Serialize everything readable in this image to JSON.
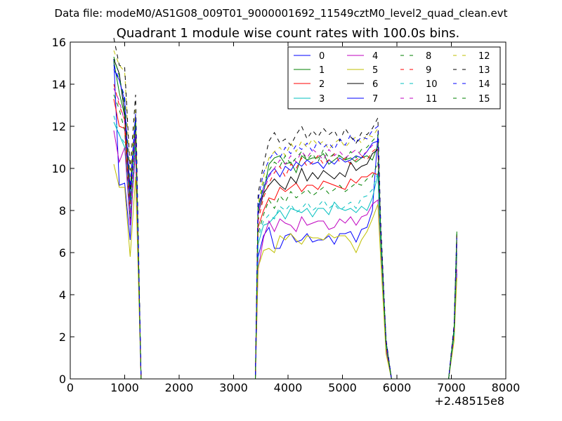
{
  "page": {
    "suptitle": "Data file: modeM0/AS1G08_009T01_9000001692_11549cztM0_level2_quad_clean.evt"
  },
  "chart_data": {
    "type": "line",
    "title": "Quadrant 1 module wise count rates with 100.0s bins.",
    "xlabel": "",
    "ylabel": "",
    "x_offset_label": "+2.48515e8",
    "xlim": [
      0,
      8000
    ],
    "ylim": [
      0,
      16
    ],
    "x_ticks": [
      "0",
      "1000",
      "2000",
      "3000",
      "4000",
      "5000",
      "6000",
      "7000",
      "8000"
    ],
    "y_ticks": [
      "0",
      "2",
      "4",
      "6",
      "8",
      "10",
      "12",
      "14",
      "16"
    ],
    "grid": false,
    "legend_position": "top-right",
    "x": [
      800,
      900,
      1000,
      1100,
      1200,
      1300,
      1400,
      2000,
      3000,
      3400,
      3450,
      3550,
      3650,
      3750,
      3850,
      3950,
      4050,
      4150,
      4250,
      4350,
      4450,
      4550,
      4650,
      4750,
      4850,
      4950,
      5050,
      5150,
      5250,
      5350,
      5450,
      5550,
      5650,
      5700,
      5800,
      5900,
      6000,
      6500,
      6950,
      7050,
      7100
    ],
    "series": [
      {
        "name": "0",
        "color": "#0000ff",
        "dash": "solid",
        "values": [
          15.2,
          9.2,
          9.3,
          6.6,
          11.9,
          0,
          0,
          0,
          0,
          0,
          5.8,
          6.8,
          7.2,
          6.2,
          6.2,
          6.8,
          6.9,
          6.5,
          6.6,
          6.9,
          6.5,
          6.6,
          6.6,
          6.8,
          6.4,
          6.9,
          6.9,
          7.0,
          6.5,
          7.1,
          7.2,
          8.0,
          11.6,
          6.6,
          1.4,
          0,
          0,
          0,
          0,
          2.0,
          5.0
        ]
      },
      {
        "name": "1",
        "color": "#008000",
        "dash": "solid",
        "values": [
          15.1,
          13.6,
          12.5,
          8.3,
          12.5,
          0,
          0,
          0,
          0,
          0,
          8.2,
          8.8,
          10.2,
          10.5,
          10.6,
          10.2,
          10.3,
          9.8,
          10.6,
          10.4,
          10.5,
          10.5,
          10.7,
          10.2,
          10.4,
          10.6,
          10.4,
          10.5,
          10.3,
          10.5,
          10.6,
          10.4,
          11.1,
          7.1,
          1.8,
          0,
          0,
          0,
          0,
          2.4,
          7.0
        ]
      },
      {
        "name": "2",
        "color": "#ff0000",
        "dash": "solid",
        "values": [
          13.3,
          12.0,
          11.9,
          7.3,
          10.9,
          0,
          0,
          0,
          0,
          0,
          7.2,
          8.0,
          8.6,
          8.5,
          9.1,
          8.9,
          9.1,
          9.3,
          8.9,
          9.2,
          9.2,
          9.0,
          9.4,
          9.3,
          9.2,
          9.1,
          9.0,
          9.5,
          9.3,
          9.6,
          9.6,
          9.8,
          9.7,
          6.5,
          1.5,
          0,
          0,
          0,
          0,
          2.2,
          5.8
        ]
      },
      {
        "name": "3",
        "color": "#00bfbf",
        "dash": "solid",
        "values": [
          12.2,
          11.6,
          11.0,
          7.8,
          11.3,
          0,
          0,
          0,
          0,
          0,
          6.4,
          7.3,
          7.4,
          7.7,
          8.0,
          7.6,
          8.1,
          8.0,
          7.9,
          8.1,
          7.7,
          8.1,
          8.1,
          7.8,
          8.4,
          8.1,
          8.0,
          8.1,
          7.9,
          8.2,
          8.0,
          8.6,
          9.7,
          6.3,
          1.6,
          0,
          0,
          0,
          0,
          2.2,
          6.1
        ]
      },
      {
        "name": "4",
        "color": "#bf00bf",
        "dash": "solid",
        "values": [
          11.8,
          10.3,
          11.0,
          7.3,
          10.8,
          0,
          0,
          0,
          0,
          0,
          5.2,
          6.7,
          7.5,
          7.0,
          7.6,
          7.4,
          7.3,
          7.0,
          7.7,
          7.3,
          7.4,
          7.5,
          7.5,
          7.1,
          7.2,
          7.6,
          7.4,
          7.7,
          7.3,
          7.7,
          7.8,
          8.3,
          8.5,
          6.0,
          1.4,
          0,
          0,
          0,
          0,
          2.0,
          5.2
        ]
      },
      {
        "name": "5",
        "color": "#bfbf00",
        "dash": "solid",
        "values": [
          10.2,
          9.1,
          9.1,
          5.8,
          9.6,
          0,
          0,
          0,
          0,
          0,
          5.3,
          6.1,
          6.2,
          6.0,
          6.8,
          6.6,
          6.9,
          6.6,
          6.4,
          6.8,
          6.7,
          6.7,
          6.6,
          6.9,
          6.7,
          6.8,
          6.8,
          6.5,
          6.0,
          6.6,
          7.0,
          7.6,
          8.3,
          5.8,
          1.2,
          0,
          0,
          0,
          0,
          1.8,
          4.8
        ]
      },
      {
        "name": "6",
        "color": "#000000",
        "dash": "solid",
        "values": [
          15.2,
          14.5,
          12.6,
          9.0,
          12.3,
          0,
          0,
          0,
          0,
          0,
          7.8,
          8.8,
          9.2,
          9.5,
          9.2,
          9.0,
          9.6,
          9.3,
          10.0,
          9.4,
          9.8,
          9.5,
          9.9,
          9.7,
          9.5,
          9.8,
          9.6,
          10.3,
          9.9,
          10.1,
          10.2,
          10.7,
          10.9,
          7.0,
          1.7,
          0,
          0,
          0,
          0,
          2.3,
          6.4
        ]
      },
      {
        "name": "7",
        "color": "#0000ff",
        "dash": "solid",
        "values": [
          14.7,
          14.2,
          13.2,
          8.5,
          12.4,
          0,
          0,
          0,
          0,
          0,
          8.0,
          9.1,
          9.7,
          10.0,
          9.6,
          10.1,
          9.9,
          10.3,
          10.1,
          10.4,
          10.2,
          10.3,
          10.0,
          10.4,
          10.2,
          10.5,
          10.3,
          10.4,
          10.6,
          10.5,
          10.8,
          11.2,
          11.3,
          7.1,
          1.8,
          0,
          0,
          0,
          0,
          2.4,
          6.7
        ]
      },
      {
        "name": "8",
        "color": "#008000",
        "dash": "dashed",
        "values": [
          13.5,
          12.8,
          11.8,
          7.6,
          11.4,
          0,
          0,
          0,
          0,
          0,
          6.9,
          7.8,
          8.5,
          8.1,
          8.7,
          8.4,
          8.9,
          8.6,
          8.8,
          9.0,
          8.7,
          8.9,
          9.1,
          8.8,
          9.0,
          9.2,
          8.9,
          9.1,
          9.3,
          9.2,
          9.5,
          9.6,
          10.3,
          6.8,
          1.6,
          0,
          0,
          0,
          0,
          2.2,
          6.0
        ]
      },
      {
        "name": "9",
        "color": "#ff0000",
        "dash": "dashed",
        "values": [
          14.0,
          13.0,
          12.3,
          8.0,
          11.7,
          0,
          0,
          0,
          0,
          0,
          7.5,
          8.6,
          9.3,
          9.8,
          10.1,
          9.6,
          10.2,
          10.0,
          10.5,
          10.1,
          10.3,
          10.6,
          10.2,
          10.4,
          10.7,
          10.3,
          10.5,
          10.2,
          10.4,
          10.6,
          10.4,
          10.8,
          11.0,
          7.0,
          1.7,
          0,
          0,
          0,
          0,
          2.3,
          6.5
        ]
      },
      {
        "name": "10",
        "color": "#00bfbf",
        "dash": "dashed",
        "values": [
          12.5,
          11.6,
          11.2,
          7.7,
          11.0,
          0,
          0,
          0,
          0,
          0,
          6.7,
          7.5,
          7.8,
          7.6,
          8.2,
          8.0,
          8.3,
          7.9,
          8.1,
          8.4,
          8.0,
          8.2,
          8.5,
          8.1,
          8.3,
          8.0,
          8.2,
          8.4,
          8.1,
          8.6,
          8.7,
          9.0,
          9.8,
          6.5,
          1.6,
          0,
          0,
          0,
          0,
          2.1,
          6.0
        ]
      },
      {
        "name": "11",
        "color": "#bf00bf",
        "dash": "dashed",
        "values": [
          13.8,
          13.2,
          12.2,
          7.9,
          11.8,
          0,
          0,
          0,
          0,
          0,
          7.8,
          8.9,
          9.6,
          10.0,
          10.4,
          10.2,
          10.6,
          10.3,
          10.8,
          10.5,
          10.9,
          10.7,
          10.4,
          10.9,
          10.6,
          10.8,
          10.5,
          10.7,
          10.9,
          10.6,
          10.8,
          11.1,
          11.2,
          7.2,
          1.7,
          0,
          0,
          0,
          0,
          2.4,
          6.6
        ]
      },
      {
        "name": "12",
        "color": "#bfbf00",
        "dash": "dashed",
        "values": [
          15.6,
          14.9,
          14.6,
          9.6,
          12.8,
          0,
          0,
          0,
          0,
          0,
          8.3,
          9.6,
          10.5,
          10.8,
          11.0,
          10.6,
          11.2,
          10.8,
          11.3,
          11.0,
          11.4,
          11.1,
          11.3,
          10.9,
          11.2,
          11.4,
          11.0,
          11.3,
          11.5,
          11.2,
          11.6,
          11.5,
          11.9,
          7.4,
          1.8,
          0,
          0,
          0,
          0,
          2.5,
          6.8
        ]
      },
      {
        "name": "13",
        "color": "#000000",
        "dash": "dashed",
        "values": [
          16.2,
          14.9,
          14.8,
          9.9,
          13.5,
          0,
          0,
          0,
          0,
          0,
          8.8,
          10.2,
          11.3,
          11.7,
          11.2,
          11.4,
          11.1,
          11.6,
          12.0,
          11.4,
          11.8,
          11.5,
          11.9,
          11.6,
          11.8,
          11.3,
          11.9,
          11.5,
          11.2,
          11.7,
          11.6,
          11.9,
          12.4,
          7.6,
          1.9,
          0,
          0,
          0,
          0,
          2.6,
          7.0
        ]
      },
      {
        "name": "14",
        "color": "#0000ff",
        "dash": "dashed",
        "values": [
          14.9,
          14.2,
          13.4,
          9.1,
          12.6,
          0,
          0,
          0,
          0,
          0,
          8.5,
          9.8,
          10.4,
          10.8,
          10.5,
          11.0,
          10.7,
          11.1,
          10.9,
          11.2,
          10.8,
          11.3,
          11.0,
          11.2,
          10.9,
          11.4,
          11.1,
          11.6,
          11.2,
          11.5,
          11.4,
          11.8,
          12.0,
          7.3,
          1.8,
          0,
          0,
          0,
          0,
          2.5,
          6.7
        ]
      },
      {
        "name": "15",
        "color": "#008000",
        "dash": "dashed",
        "values": [
          15.3,
          14.4,
          13.0,
          8.6,
          12.2,
          0,
          0,
          0,
          0,
          0,
          8.1,
          9.3,
          9.9,
          10.3,
          10.1,
          10.6,
          10.2,
          10.5,
          10.8,
          10.4,
          10.7,
          10.3,
          10.9,
          10.5,
          10.7,
          10.6,
          10.4,
          10.8,
          10.5,
          10.9,
          11.0,
          11.3,
          11.6,
          7.2,
          1.7,
          0,
          0,
          0,
          0,
          2.4,
          6.9
        ]
      }
    ]
  }
}
